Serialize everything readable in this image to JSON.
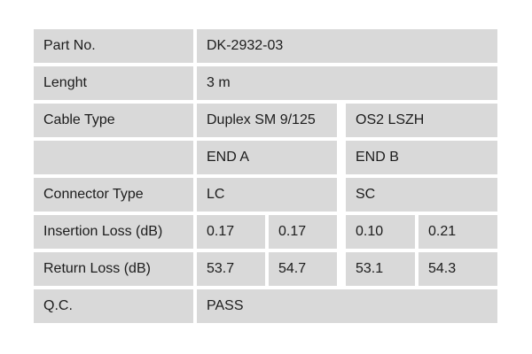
{
  "colors": {
    "page_background": "#ffffff",
    "cell_background": "#d9d9d9",
    "text": "#1c1c1c"
  },
  "spec_table": {
    "part_no": {
      "label": "Part No.",
      "value": "DK-2932-03"
    },
    "length": {
      "label": "Lenght",
      "value": "3 m"
    },
    "cable_type": {
      "label": "Cable Type",
      "end_a": "Duplex SM 9/125",
      "end_b": "OS2 LSZH"
    },
    "end_header": {
      "label": "",
      "end_a": "END A",
      "end_b": "END B"
    },
    "connector_type": {
      "label": "Connector Type",
      "end_a": "LC",
      "end_b": "SC"
    },
    "insertion_loss": {
      "label": "Insertion Loss (dB)",
      "values": [
        "0.17",
        "0.17",
        "0.10",
        "0.21"
      ]
    },
    "return_loss": {
      "label": "Return Loss (dB)",
      "values": [
        "53.7",
        "54.7",
        "53.1",
        "54.3"
      ]
    },
    "qc": {
      "label": "Q.C.",
      "value": "PASS"
    }
  },
  "chart_data": {
    "type": "table",
    "rows": [
      [
        "Part No.",
        "DK-2932-03"
      ],
      [
        "Lenght",
        "3 m"
      ],
      [
        "Cable Type",
        "Duplex SM 9/125",
        "OS2 LSZH"
      ],
      [
        "",
        "END A",
        "END B"
      ],
      [
        "Connector Type",
        "LC",
        "SC"
      ],
      [
        "Insertion Loss (dB)",
        "0.17",
        "0.17",
        "0.10",
        "0.21"
      ],
      [
        "Return Loss (dB)",
        "53.7",
        "54.7",
        "53.1",
        "54.3"
      ],
      [
        "Q.C.",
        "PASS"
      ]
    ]
  }
}
